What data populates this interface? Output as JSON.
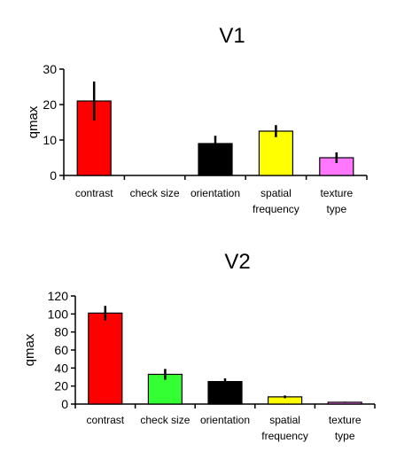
{
  "chart_data": [
    {
      "type": "bar",
      "title": "V1",
      "ylabel": "qmax",
      "xlabel": "",
      "ylim": [
        0,
        30
      ],
      "yticks": [
        0,
        10,
        20,
        30
      ],
      "categories": [
        [
          "contrast"
        ],
        [
          "check size"
        ],
        [
          "orientation"
        ],
        [
          "spatial",
          "frequency"
        ],
        [
          "texture",
          "type"
        ]
      ],
      "values": [
        21,
        0,
        9,
        12.5,
        5
      ],
      "errors": [
        5.5,
        0,
        2.2,
        1.7,
        1.5
      ],
      "colors": [
        "#ff0000",
        "#33ff33",
        "#000000",
        "#ffff00",
        "#ff77ff"
      ],
      "grid": false,
      "legend": "none"
    },
    {
      "type": "bar",
      "title": "V2",
      "ylabel": "qmax",
      "xlabel": "",
      "ylim": [
        0,
        120
      ],
      "yticks": [
        0,
        20,
        40,
        60,
        80,
        100,
        120
      ],
      "categories": [
        [
          "contrast"
        ],
        [
          "check size"
        ],
        [
          "orientation"
        ],
        [
          "spatial",
          "frequency"
        ],
        [
          "texture",
          "type"
        ]
      ],
      "values": [
        101,
        33,
        25,
        8,
        2
      ],
      "errors": [
        8,
        6,
        3.5,
        1.5,
        0.6
      ],
      "colors": [
        "#ff0000",
        "#33ff33",
        "#000000",
        "#ffff00",
        "#ff77ff"
      ],
      "grid": false,
      "legend": "none"
    }
  ]
}
